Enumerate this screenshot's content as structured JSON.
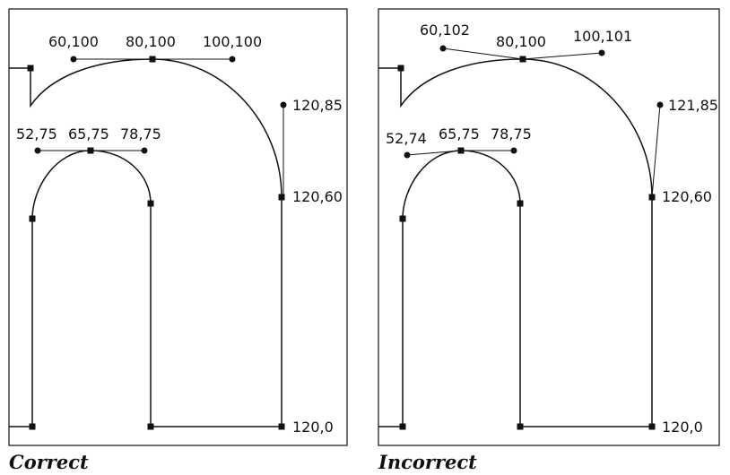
{
  "diagrams": [
    {
      "id": "correct",
      "caption": "Correct",
      "labels": {
        "c1": "60,100",
        "a1": "80,100",
        "c2": "100,100",
        "c3": "120,85",
        "a2": "120,60",
        "a3": "120,0",
        "c4": "52,75",
        "a4": "65,75",
        "c5": "78,75"
      }
    },
    {
      "id": "incorrect",
      "caption": "Incorrect",
      "labels": {
        "c1": "60,102",
        "a1": "80,100",
        "c2": "100,101",
        "c3": "121,85",
        "a2": "120,60",
        "a3": "120,0",
        "c4": "52,74",
        "a4": "65,75",
        "c5": "78,75"
      }
    }
  ],
  "colors": {
    "stroke": "#111111",
    "background": "#ffffff"
  }
}
